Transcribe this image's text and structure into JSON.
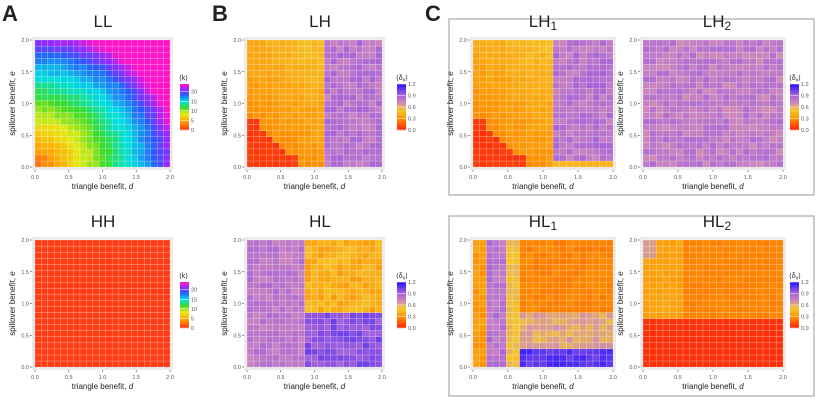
{
  "panel_letters": [
    "A",
    "B",
    "C"
  ],
  "colorbar_ticks": [
    "1.2",
    "0.9",
    "0.6",
    "0.3",
    "0.0"
  ],
  "colorbar_ticks_k": [
    "20",
    "15",
    "10",
    "5",
    "0"
  ],
  "chart_data": [
    {
      "id": "LL",
      "type": "heatmap",
      "title": "LL",
      "title_sub": "",
      "colormap": "rainbow",
      "legend_label": "⟨k⟩",
      "colorbar": true,
      "xlabel": "triangle benefit, d",
      "ylabel": "spillover benefit, e",
      "x_ticks": [
        "0.0",
        "0.5",
        "1.0",
        "1.5",
        "2.0"
      ],
      "y_ticks": [
        "0.0",
        "0.5",
        "1.0",
        "1.5",
        "2.0"
      ],
      "xlim": [
        0,
        2
      ],
      "ylim": [
        0,
        2
      ],
      "clim": [
        0,
        24
      ],
      "grid": [
        21,
        21
      ],
      "pattern": "LL_gradient"
    },
    {
      "id": "LH",
      "type": "heatmap",
      "title": "LH",
      "title_sub": "",
      "colormap": "plasma_rev",
      "legend_label": "⟨δx⟩",
      "colorbar": true,
      "xlabel": "triangle benefit, d",
      "ylabel": "spillover benefit, e",
      "x_ticks": [
        "0.0",
        "0.5",
        "1.0",
        "1.5",
        "2.0"
      ],
      "y_ticks": [
        "0.0",
        "0.5",
        "1.0",
        "1.5",
        "2.0"
      ],
      "xlim": [
        0,
        2
      ],
      "ylim": [
        0,
        2
      ],
      "clim": [
        0,
        1.2
      ],
      "grid": [
        21,
        21
      ],
      "pattern": "LH_split"
    },
    {
      "id": "LH1",
      "type": "heatmap",
      "title": "LH",
      "title_sub": "1",
      "colormap": "plasma_rev",
      "legend_label": "",
      "colorbar": false,
      "xlabel": "triangle benefit, d",
      "ylabel": "spillover benefit, e",
      "x_ticks": [
        "0.0",
        "0.5",
        "1.0",
        "1.5",
        "2.0"
      ],
      "y_ticks": [
        "0.0",
        "0.5",
        "1.0",
        "1.5",
        "2.0"
      ],
      "xlim": [
        0,
        2
      ],
      "ylim": [
        0,
        2
      ],
      "clim": [
        0,
        1.2
      ],
      "grid": [
        21,
        21
      ],
      "pattern": "LH1_split"
    },
    {
      "id": "LH2",
      "type": "heatmap",
      "title": "LH",
      "title_sub": "2",
      "colormap": "plasma_rev",
      "legend_label": "⟨δx⟩",
      "colorbar": true,
      "xlabel": "triangle benefit, d",
      "ylabel": "spillover benefit, e",
      "x_ticks": [
        "0.0",
        "0.5",
        "1.0",
        "1.5",
        "2.0"
      ],
      "y_ticks": [
        "0.0",
        "0.5",
        "1.0",
        "1.5",
        "2.0"
      ],
      "xlim": [
        0,
        2
      ],
      "ylim": [
        0,
        2
      ],
      "clim": [
        0,
        1.2
      ],
      "grid": [
        21,
        21
      ],
      "pattern": "LH2_uniform"
    },
    {
      "id": "HH",
      "type": "heatmap",
      "title": "HH",
      "title_sub": "",
      "colormap": "rainbow",
      "legend_label": "⟨k⟩",
      "colorbar": true,
      "xlabel": "triangle benefit, d",
      "ylabel": "spillover benefit, e",
      "x_ticks": [
        "0.0",
        "0.5",
        "1.0",
        "1.5",
        "2.0"
      ],
      "y_ticks": [
        "0.0",
        "0.5",
        "1.0",
        "1.5",
        "2.0"
      ],
      "xlim": [
        0,
        2
      ],
      "ylim": [
        0,
        2
      ],
      "clim": [
        0,
        24
      ],
      "grid": [
        21,
        21
      ],
      "pattern": "HH_zero"
    },
    {
      "id": "HL",
      "type": "heatmap",
      "title": "HL",
      "title_sub": "",
      "colormap": "plasma_rev",
      "legend_label": "⟨δx⟩",
      "colorbar": true,
      "xlabel": "triangle benefit, d",
      "ylabel": "spillover benefit, e",
      "x_ticks": [
        "0.0",
        "0.5",
        "1.0",
        "1.5",
        "2.0"
      ],
      "y_ticks": [
        "0.0",
        "0.5",
        "1.0",
        "1.5",
        "2.0"
      ],
      "xlim": [
        0,
        2
      ],
      "ylim": [
        0,
        2
      ],
      "clim": [
        0,
        1.2
      ],
      "grid": [
        21,
        21
      ],
      "pattern": "HL_quadrants"
    },
    {
      "id": "HL1",
      "type": "heatmap",
      "title": "HL",
      "title_sub": "1",
      "colormap": "plasma_rev",
      "legend_label": "",
      "colorbar": false,
      "xlabel": "triangle benefit, d",
      "ylabel": "spillover benefit, e",
      "x_ticks": [
        "0.0",
        "0.5",
        "1.0",
        "1.5",
        "2.0"
      ],
      "y_ticks": [
        "0.0",
        "0.5",
        "1.0",
        "1.5",
        "2.0"
      ],
      "xlim": [
        0,
        2
      ],
      "ylim": [
        0,
        2
      ],
      "clim": [
        0,
        1.2
      ],
      "grid": [
        21,
        21
      ],
      "pattern": "HL1_mixed"
    },
    {
      "id": "HL2",
      "type": "heatmap",
      "title": "HL",
      "title_sub": "2",
      "colormap": "plasma_rev",
      "legend_label": "⟨δx⟩",
      "colorbar": true,
      "xlabel": "triangle benefit, d",
      "ylabel": "spillover benefit, e",
      "x_ticks": [
        "0.0",
        "0.5",
        "1.0",
        "1.5",
        "2.0"
      ],
      "y_ticks": [
        "0.0",
        "0.5",
        "1.0",
        "1.5",
        "2.0"
      ],
      "xlim": [
        0,
        2
      ],
      "ylim": [
        0,
        2
      ],
      "clim": [
        0,
        1.2
      ],
      "grid": [
        21,
        21
      ],
      "pattern": "HL2_blocks"
    }
  ]
}
